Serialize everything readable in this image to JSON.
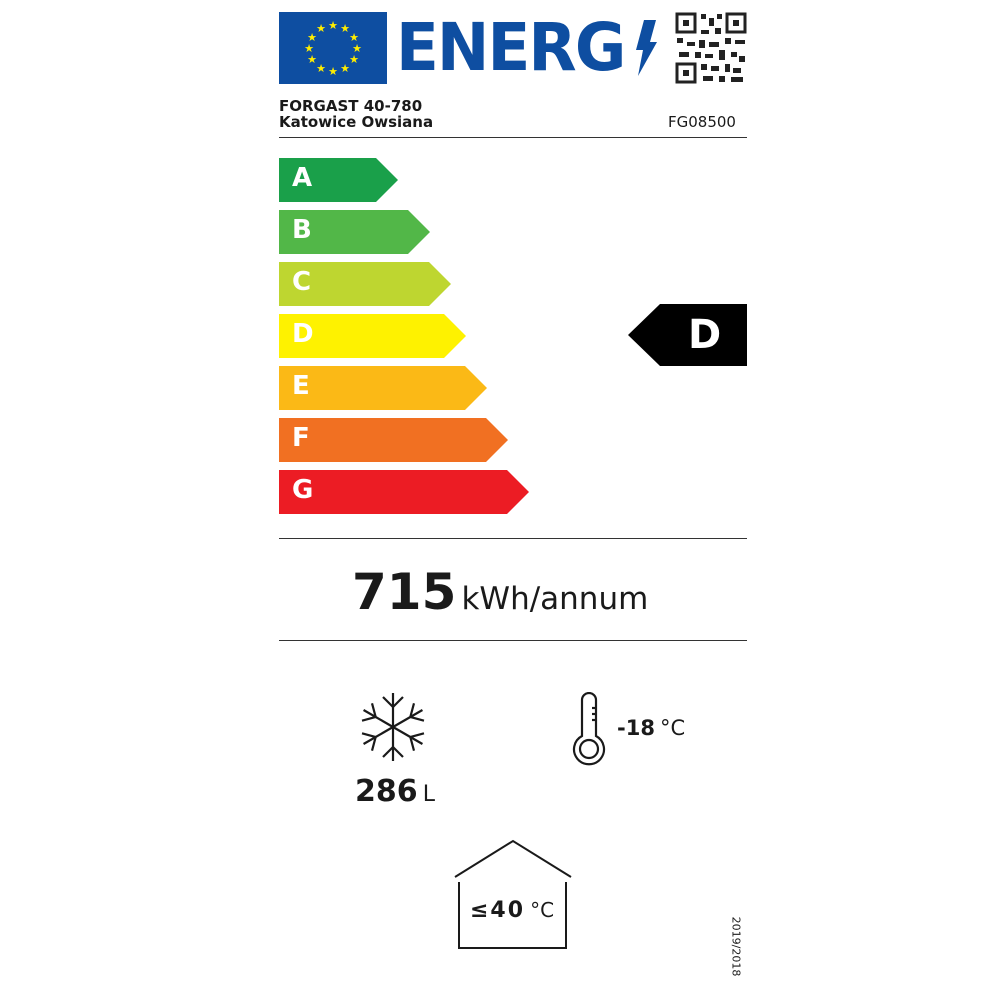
{
  "header": {
    "logo_text": "ENERG",
    "supplier": "FORGAST 40-780",
    "supplier_line2": "Katowice Owsiana",
    "model": "FG08500"
  },
  "scale": {
    "classes": [
      {
        "label": "A",
        "color": "#1aa04a"
      },
      {
        "label": "B",
        "color": "#52b748"
      },
      {
        "label": "C",
        "color": "#bed630"
      },
      {
        "label": "D",
        "color": "#fef200"
      },
      {
        "label": "E",
        "color": "#fbb916"
      },
      {
        "label": "F",
        "color": "#f17022"
      },
      {
        "label": "G",
        "color": "#ec1c24"
      }
    ],
    "rating": "D"
  },
  "energy": {
    "value": "715",
    "unit": "kWh/annum"
  },
  "volume": {
    "icon": "snowflake-icon",
    "value": "286",
    "unit": "L"
  },
  "temperature": {
    "icon": "thermometer-icon",
    "value": "-18",
    "unit": "°C"
  },
  "ambient": {
    "icon": "house-icon",
    "value": "≤40",
    "unit": "°C"
  },
  "regulation": "2019/2018",
  "colors": {
    "eu_blue": "#0e4ea1",
    "eu_star": "#ffed00"
  }
}
